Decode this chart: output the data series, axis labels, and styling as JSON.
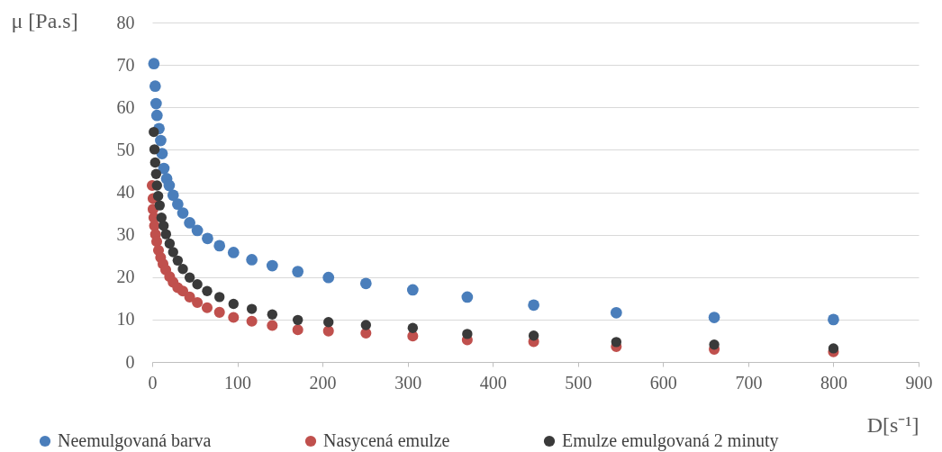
{
  "chart_data": {
    "type": "scatter",
    "xlabel": "D[s⁻¹]",
    "ylabel": "μ [Pa.s]",
    "xlim": [
      0,
      900
    ],
    "xticks": [
      0,
      100,
      200,
      300,
      400,
      500,
      600,
      700,
      800,
      900
    ],
    "ylim": [
      0,
      80
    ],
    "yticks": [
      0,
      10,
      20,
      30,
      40,
      50,
      60,
      70,
      80
    ],
    "grid": "y",
    "legend": "bottom",
    "marker": "circle",
    "series": [
      {
        "name": "Neemulgovaná barva",
        "color": "#4a7ebb",
        "x": [
          2,
          3.5,
          4.6,
          5.6,
          8,
          10,
          11.6,
          13.7,
          17,
          20,
          24.6,
          30,
          36,
          44,
          53,
          65,
          79,
          95.5,
          117,
          141,
          171,
          207,
          251,
          306,
          370,
          448,
          545,
          660,
          800
        ],
        "values": [
          70.3,
          65.0,
          60.9,
          58.1,
          55.0,
          52.2,
          49.1,
          45.6,
          43.2,
          41.6,
          39.3,
          37.2,
          35.1,
          32.8,
          31.0,
          29.1,
          27.4,
          25.8,
          24.1,
          22.7,
          21.3,
          19.9,
          18.5,
          17.0,
          15.3,
          13.4,
          11.6,
          10.5,
          10.0
        ]
      },
      {
        "name": "Nasycená emulze",
        "color": "#c0504d",
        "x": [
          0,
          1,
          1,
          2,
          2.7,
          3.9,
          5.3,
          7.4,
          9.9,
          12.7,
          15.9,
          20.5,
          24.6,
          30,
          36,
          44,
          53,
          64.5,
          79,
          95.5,
          117,
          141,
          171,
          207,
          251,
          306,
          370,
          448,
          545,
          660,
          800
        ],
        "values": [
          41.6,
          38.5,
          36.0,
          34.0,
          32.1,
          30.1,
          28.4,
          26.3,
          24.6,
          23.1,
          21.7,
          20.1,
          18.8,
          17.5,
          16.7,
          15.3,
          14.0,
          12.8,
          11.7,
          10.5,
          9.6,
          8.6,
          7.6,
          7.3,
          6.8,
          6.1,
          5.2,
          4.8,
          3.6,
          3.0,
          2.4
        ]
      },
      {
        "name": "Emulze emulgovaná 2 minuty",
        "color": "#3a3a3a",
        "x": [
          1.9,
          2.7,
          3.5,
          4.6,
          5.6,
          7,
          8.8,
          10.9,
          13.4,
          16.2,
          20.5,
          24.6,
          30,
          36,
          44,
          53,
          64.5,
          79,
          95.5,
          117,
          141,
          171,
          207,
          251,
          306,
          370,
          448,
          545,
          660,
          800
        ],
        "values": [
          54.2,
          50.1,
          47.0,
          44.3,
          41.6,
          39.1,
          36.9,
          34.0,
          32.1,
          30.1,
          27.9,
          25.9,
          23.9,
          21.9,
          19.9,
          18.3,
          16.7,
          15.3,
          13.7,
          12.5,
          11.2,
          9.9,
          9.4,
          8.7,
          8.0,
          6.6,
          6.2,
          4.7,
          4.1,
          3.2
        ]
      }
    ]
  }
}
